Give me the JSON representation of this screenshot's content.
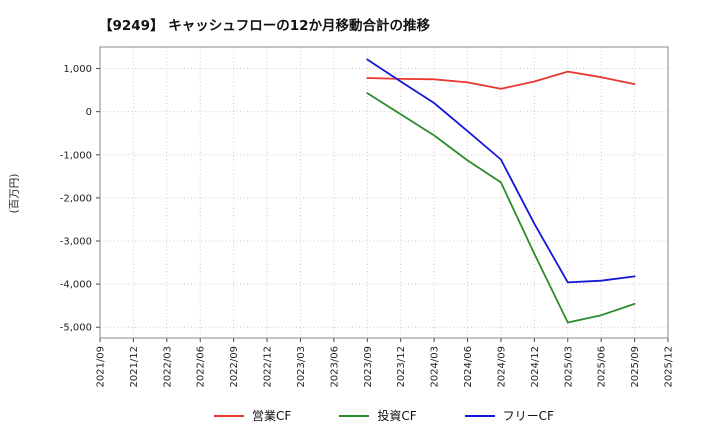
{
  "chart_data": {
    "type": "line",
    "title": "【9249】  キャッシュフローの12か月移動合計の推移",
    "ylabel": "(百万円)",
    "xlabel": "",
    "grid": true,
    "grid_style": "dotted",
    "grid_color": "#dfbfbf",
    "legend_position": "bottom",
    "ylim": [
      -5250,
      1500
    ],
    "yticks": [
      1000,
      0,
      -1000,
      -2000,
      -3000,
      -4000,
      -5000
    ],
    "categories": [
      "2021/09",
      "2021/12",
      "2022/03",
      "2022/06",
      "2022/09",
      "2022/12",
      "2023/03",
      "2023/06",
      "2023/09",
      "2023/12",
      "2024/03",
      "2024/06",
      "2024/09",
      "2024/12",
      "2025/03",
      "2025/06",
      "2025/09",
      "2025/12"
    ],
    "series": [
      {
        "name": "営業CF",
        "color": "#e8382f",
        "values": [
          null,
          null,
          null,
          null,
          null,
          null,
          null,
          null,
          780,
          760,
          750,
          680,
          530,
          700,
          930,
          800,
          640,
          null
        ]
      },
      {
        "name": "投資CF",
        "color": "#2c8c2c",
        "values": [
          null,
          null,
          null,
          null,
          null,
          null,
          null,
          null,
          430,
          -60,
          -550,
          -1130,
          -1640,
          -3300,
          -4890,
          -4720,
          -4460,
          null
        ]
      },
      {
        "name": "フリーCF",
        "color": "#1616d9",
        "values": [
          null,
          null,
          null,
          null,
          null,
          null,
          null,
          null,
          1210,
          700,
          200,
          -450,
          -1110,
          -2600,
          -3960,
          -3920,
          -3820,
          null
        ]
      }
    ]
  }
}
